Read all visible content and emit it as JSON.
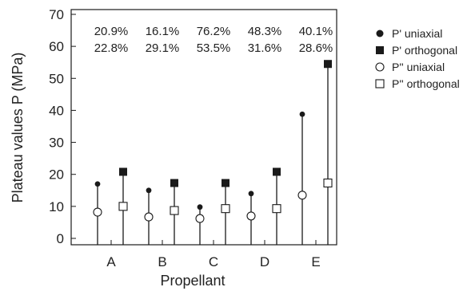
{
  "chart_data": {
    "type": "scatter",
    "title": "",
    "xlabel": "Propellant",
    "ylabel": "Plateau values P (MPa)",
    "ylim": [
      0,
      70
    ],
    "yticks": [
      0,
      10,
      20,
      30,
      40,
      50,
      60,
      70
    ],
    "categories": [
      "A",
      "B",
      "C",
      "D",
      "E"
    ],
    "series": [
      {
        "name": "P' uniaxial",
        "marker": "filled-circle",
        "values": [
          17,
          15,
          9.8,
          14,
          38.8
        ]
      },
      {
        "name": "P' orthogonal",
        "marker": "filled-square",
        "values": [
          20.8,
          17.3,
          17.3,
          20.8,
          54.5
        ]
      },
      {
        "name": "P'' uniaxial",
        "marker": "open-circle",
        "values": [
          8.2,
          6.7,
          6.2,
          7,
          13.5
        ]
      },
      {
        "name": "P'' orthogonal",
        "marker": "open-square",
        "values": [
          10,
          8.7,
          9.3,
          9.3,
          17.3
        ]
      }
    ],
    "annotations": {
      "row1": [
        "20.9%",
        "16.1%",
        "76.2%",
        "48.3%",
        "40.1%"
      ],
      "row2": [
        "22.8%",
        "29.1%",
        "53.5%",
        "31.6%",
        "28.6%"
      ]
    },
    "legend_position": "right",
    "grid": false,
    "colors": {
      "marker": "#1a1a1a",
      "line": "#1a1a1a"
    }
  }
}
